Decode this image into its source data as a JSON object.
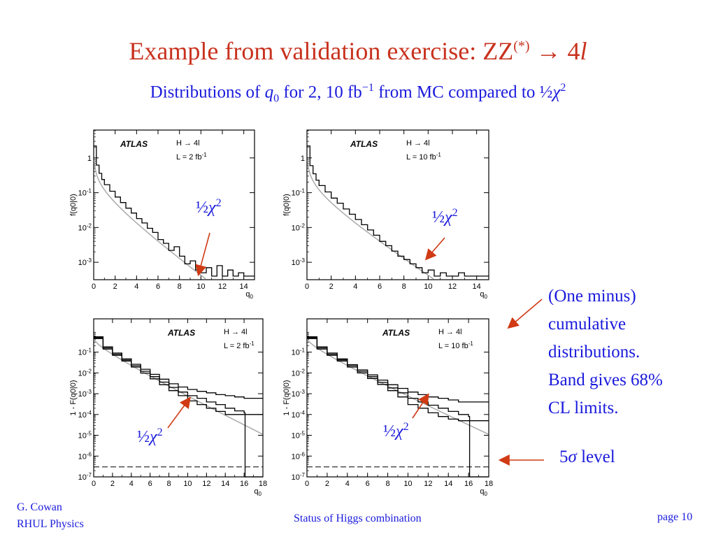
{
  "slide": {
    "title": "Example from validation exercise:  ZZ",
    "title_sup": "(*)",
    "title_arrow": " → 4",
    "title_l": "l",
    "subtitle_pre": "Distributions of ",
    "subtitle_q": "q",
    "subtitle_sub": "0",
    "subtitle_mid": " for 2, 10 fb",
    "subtitle_sup": "−1",
    "subtitle_post": " from MC compared to ",
    "half": "½",
    "chi": "χ",
    "two": "2",
    "note_lines": [
      "(One minus)",
      "cumulative",
      "distributions.",
      "Band gives 68%",
      "CL limits."
    ],
    "sigma_five": "5",
    "sigma": "σ",
    "level": " level",
    "footer_name": "G. Cowan",
    "footer_inst": "RHUL Physics",
    "footer_center": "Status of Higgs combination",
    "footer_page": "page 10"
  },
  "colors": {
    "title": "#c8321e",
    "text": "#1a1adc",
    "arrow": "#d03a14",
    "curve": "#aaaaaa"
  },
  "chart_data": [
    {
      "type": "line",
      "id": "pdf-2fb",
      "ylabel": "f(q0|0)",
      "xlabel": "q0",
      "atlas": "ATLAS",
      "legend1": "H → 4l",
      "legend2": "L = 2 fb-1",
      "xlim": [
        0,
        15
      ],
      "ylim_log10": [
        -3.5,
        0.8
      ],
      "x_ticks": [
        "0",
        "2",
        "4",
        "6",
        "8",
        "10",
        "12",
        "14"
      ],
      "y_ticks": [
        {
          "label": "1",
          "exp": 0
        },
        {
          "label": "10-1",
          "exp": -1
        },
        {
          "label": "10-2",
          "exp": -2
        },
        {
          "label": "10-3",
          "exp": -3
        }
      ],
      "series": [
        {
          "x": [
            0,
            0.25,
            0.5,
            0.75,
            1,
            1.5,
            2,
            2.5,
            3,
            3.5,
            4,
            4.5,
            5,
            5.5,
            6,
            6.5,
            7,
            7.5,
            8,
            8.5,
            9,
            9.5,
            10,
            10.5,
            11,
            11.5,
            12,
            12.5,
            13,
            13.5,
            14
          ],
          "y": [
            2.2,
            0.62,
            0.36,
            0.24,
            0.17,
            0.11,
            0.075,
            0.052,
            0.036,
            0.026,
            0.018,
            0.0135,
            0.0095,
            0.0072,
            0.0045,
            0.0035,
            0.0022,
            0.0028,
            0.0015,
            0.0009,
            0.0011,
            0.0006,
            0.0005,
            0.0007,
            0.0004,
            0.0008,
            0.0004,
            0.0006,
            0.0004,
            0.0005,
            0.0004
          ]
        }
      ],
      "curve": "half-chi2"
    },
    {
      "type": "line",
      "id": "pdf-10fb",
      "ylabel": "f(q0|0)",
      "xlabel": "q0",
      "atlas": "ATLAS",
      "legend1": "H → 4l",
      "legend2": "L = 10 fb-1",
      "xlim": [
        0,
        15
      ],
      "ylim_log10": [
        -3.5,
        0.8
      ],
      "x_ticks": [
        "0",
        "2",
        "4",
        "6",
        "8",
        "10",
        "12",
        "14"
      ],
      "y_ticks": [
        {
          "label": "1",
          "exp": 0
        },
        {
          "label": "10-1",
          "exp": -1
        },
        {
          "label": "10-2",
          "exp": -2
        },
        {
          "label": "10-3",
          "exp": -3
        }
      ],
      "series": [
        {
          "x": [
            0,
            0.25,
            0.5,
            0.75,
            1,
            1.5,
            2,
            2.5,
            3,
            3.5,
            4,
            4.5,
            5,
            5.5,
            6,
            6.5,
            7,
            7.5,
            8,
            8.5,
            9,
            9.5,
            10,
            10.5,
            11,
            11.5,
            12,
            12.5,
            13,
            13.5,
            14
          ],
          "y": [
            2.2,
            0.6,
            0.35,
            0.23,
            0.16,
            0.105,
            0.07,
            0.05,
            0.034,
            0.024,
            0.017,
            0.012,
            0.0085,
            0.006,
            0.004,
            0.003,
            0.0021,
            0.0015,
            0.0012,
            0.0009,
            0.0007,
            0.0005,
            0.0006,
            0.0004,
            0.0005,
            0.0004,
            0.0004,
            0.0005,
            0.0004,
            0.0004,
            0.0004
          ]
        }
      ],
      "curve": "half-chi2"
    },
    {
      "type": "line",
      "id": "cdf-2fb",
      "ylabel": "1 - F(q0|0)",
      "xlabel": "q0",
      "atlas": "ATLAS",
      "legend1": "H → 4l",
      "legend2": "L = 2 fb-1",
      "xlim": [
        0,
        18
      ],
      "ylim_log10": [
        -7,
        0.6
      ],
      "x_ticks": [
        "0",
        "2",
        "4",
        "6",
        "8",
        "10",
        "12",
        "14",
        "16",
        "18"
      ],
      "y_ticks": [
        {
          "label": "10-1",
          "exp": -1
        },
        {
          "label": "10-2",
          "exp": -2
        },
        {
          "label": "10-3",
          "exp": -3
        },
        {
          "label": "10-4",
          "exp": -4
        },
        {
          "label": "10-5",
          "exp": -5
        },
        {
          "label": "10-6",
          "exp": -6
        },
        {
          "label": "10-7",
          "exp": -7
        }
      ],
      "series": [
        {
          "name": "central",
          "x": [
            0,
            1,
            2,
            3,
            4,
            5,
            6,
            7,
            8,
            9,
            10,
            11,
            12,
            13,
            14,
            15,
            16,
            16.1,
            18
          ],
          "y": [
            0.5,
            0.16,
            0.08,
            0.042,
            0.022,
            0.012,
            0.0066,
            0.0036,
            0.002,
            0.0012,
            0.0008,
            0.0006,
            0.0004,
            0.0003,
            0.0002,
            0.00015,
            0.00012,
            1e-07,
            1e-07
          ]
        },
        {
          "name": "upper",
          "x": [
            0,
            1,
            2,
            3,
            4,
            5,
            6,
            7,
            8,
            9,
            10,
            11,
            12,
            13,
            14,
            15,
            16,
            18
          ],
          "y": [
            0.55,
            0.18,
            0.09,
            0.048,
            0.026,
            0.015,
            0.0085,
            0.005,
            0.003,
            0.0021,
            0.0016,
            0.0013,
            0.0011,
            0.0009,
            0.0008,
            0.0007,
            0.0006,
            0.0006
          ]
        },
        {
          "name": "lower",
          "x": [
            0,
            1,
            2,
            3,
            4,
            5,
            6,
            7,
            8,
            9,
            10,
            11,
            12,
            13,
            14,
            15,
            16,
            18
          ],
          "y": [
            0.45,
            0.14,
            0.07,
            0.037,
            0.019,
            0.0098,
            0.0052,
            0.0027,
            0.0014,
            0.0008,
            0.00045,
            0.0003,
            0.0002,
            0.00014,
            0.0001,
            0.0001,
            0.0001,
            0.0001
          ]
        }
      ],
      "level": 3e-07,
      "curve": "half-chi2-cdf"
    },
    {
      "type": "line",
      "id": "cdf-10fb",
      "ylabel": "1 - F(q0|0)",
      "xlabel": "q0",
      "atlas": "ATLAS",
      "legend1": "H → 4l",
      "legend2": "L = 10 fb-1",
      "xlim": [
        0,
        18
      ],
      "ylim_log10": [
        -7,
        0.6
      ],
      "x_ticks": [
        "0",
        "2",
        "4",
        "6",
        "8",
        "10",
        "12",
        "14",
        "16",
        "18"
      ],
      "y_ticks": [
        {
          "label": "10-1",
          "exp": -1
        },
        {
          "label": "10-2",
          "exp": -2
        },
        {
          "label": "10-3",
          "exp": -3
        },
        {
          "label": "10-4",
          "exp": -4
        },
        {
          "label": "10-5",
          "exp": -5
        },
        {
          "label": "10-6",
          "exp": -6
        },
        {
          "label": "10-7",
          "exp": -7
        }
      ],
      "series": [
        {
          "name": "central",
          "x": [
            0,
            1,
            2,
            3,
            4,
            5,
            6,
            7,
            8,
            9,
            10,
            11,
            12,
            13,
            14,
            15,
            16,
            16.1,
            18
          ],
          "y": [
            0.5,
            0.16,
            0.08,
            0.042,
            0.022,
            0.012,
            0.0066,
            0.0035,
            0.0019,
            0.0011,
            0.0006,
            0.0004,
            0.00028,
            0.0002,
            0.00014,
            0.0001,
            8e-05,
            1e-07,
            1e-07
          ]
        },
        {
          "name": "upper",
          "x": [
            0,
            1,
            2,
            3,
            4,
            5,
            6,
            7,
            8,
            9,
            10,
            11,
            12,
            13,
            14,
            15,
            16,
            18
          ],
          "y": [
            0.55,
            0.18,
            0.09,
            0.047,
            0.025,
            0.014,
            0.008,
            0.0045,
            0.0027,
            0.0018,
            0.0012,
            0.0009,
            0.0007,
            0.0006,
            0.0005,
            0.0004,
            0.0004,
            0.0004
          ]
        },
        {
          "name": "lower",
          "x": [
            0,
            1,
            2,
            3,
            4,
            5,
            6,
            7,
            8,
            9,
            10,
            11,
            12,
            13,
            14,
            15,
            16,
            18
          ],
          "y": [
            0.45,
            0.14,
            0.07,
            0.037,
            0.019,
            0.01,
            0.0054,
            0.0028,
            0.0014,
            0.0007,
            0.0003,
            0.0002,
            0.00012,
            8e-05,
            6e-05,
            5e-05,
            5e-05,
            5e-05
          ]
        }
      ],
      "level": 3e-07,
      "curve": "half-chi2-cdf"
    }
  ],
  "chi_labels": [
    "½χ2",
    "½χ2",
    "½χ2",
    "½χ2"
  ]
}
